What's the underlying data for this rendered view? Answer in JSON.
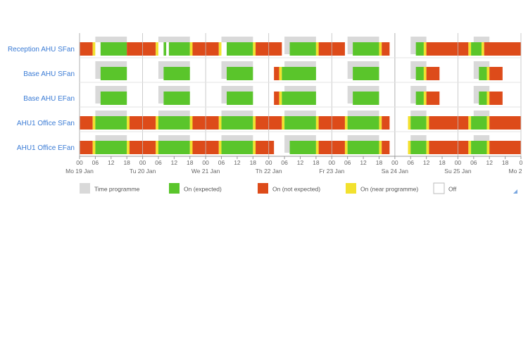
{
  "chart_data": {
    "type": "heatmap",
    "title": "",
    "x_unit": "hours since Mo 19 Jan 00:00",
    "x_range": [
      0,
      168
    ],
    "hour_ticks": [
      "00",
      "06",
      "12",
      "18"
    ],
    "day_labels": [
      "Mo 19 Jan",
      "Tu 20 Jan",
      "We 21 Jan",
      "Th 22 Jan",
      "Fr 23 Jan",
      "Sa 24 Jan",
      "Su 25 Jan",
      "Mo 2"
    ],
    "last_tick_label": "0",
    "legend": [
      {
        "key": "time",
        "label": "Time programme",
        "color": "#d9d9d9"
      },
      {
        "key": "expected",
        "label": "On (expected)",
        "color": "#5ac52b"
      },
      {
        "key": "notexpected",
        "label": "On (not expected)",
        "color": "#dd4b1a"
      },
      {
        "key": "near",
        "label": "On (near programme)",
        "color": "#f2e12e"
      },
      {
        "key": "off",
        "label": "Off",
        "color": "#ffffff"
      }
    ],
    "programme_windows": {
      "weekday": [
        6,
        18
      ],
      "saturday": [
        6,
        12
      ],
      "sunday": [
        6,
        12
      ]
    },
    "series": [
      {
        "name": "Reception AHU SFan",
        "segments": [
          [
            0,
            5,
            "notexpected"
          ],
          [
            5,
            6,
            "near"
          ],
          [
            6,
            8,
            "off"
          ],
          [
            8,
            18,
            "expected"
          ],
          [
            18,
            29,
            "notexpected"
          ],
          [
            29,
            30,
            "near"
          ],
          [
            30,
            32,
            "off"
          ],
          [
            32,
            33,
            "expected"
          ],
          [
            33,
            34,
            "off"
          ],
          [
            34,
            42,
            "expected"
          ],
          [
            42,
            43,
            "near"
          ],
          [
            43,
            53,
            "notexpected"
          ],
          [
            53,
            54,
            "near"
          ],
          [
            54,
            56,
            "off"
          ],
          [
            56,
            66,
            "expected"
          ],
          [
            66,
            67,
            "near"
          ],
          [
            67,
            77,
            "notexpected"
          ],
          [
            80,
            90,
            "expected"
          ],
          [
            90,
            91,
            "near"
          ],
          [
            91,
            101,
            "notexpected"
          ],
          [
            104,
            114,
            "expected"
          ],
          [
            114,
            115,
            "near"
          ],
          [
            115,
            118,
            "notexpected"
          ],
          [
            128,
            131,
            "expected"
          ],
          [
            131,
            132,
            "near"
          ],
          [
            132,
            148,
            "notexpected"
          ],
          [
            148,
            149,
            "near"
          ],
          [
            149,
            153,
            "expected"
          ],
          [
            153,
            154,
            "near"
          ],
          [
            154,
            168,
            "notexpected"
          ]
        ]
      },
      {
        "name": "Base AHU SFan",
        "segments": [
          [
            8,
            18,
            "expected"
          ],
          [
            32,
            42,
            "expected"
          ],
          [
            56,
            66,
            "expected"
          ],
          [
            74,
            76,
            "notexpected"
          ],
          [
            76,
            77,
            "near"
          ],
          [
            77,
            90,
            "expected"
          ],
          [
            104,
            114,
            "expected"
          ],
          [
            128,
            131,
            "expected"
          ],
          [
            131,
            132,
            "near"
          ],
          [
            132,
            137,
            "notexpected"
          ],
          [
            152,
            155,
            "expected"
          ],
          [
            155,
            156,
            "near"
          ],
          [
            156,
            161,
            "notexpected"
          ]
        ]
      },
      {
        "name": "Base AHU EFan",
        "segments": [
          [
            8,
            18,
            "expected"
          ],
          [
            32,
            42,
            "expected"
          ],
          [
            56,
            66,
            "expected"
          ],
          [
            74,
            76,
            "notexpected"
          ],
          [
            76,
            77,
            "near"
          ],
          [
            77,
            90,
            "expected"
          ],
          [
            104,
            114,
            "expected"
          ],
          [
            128,
            131,
            "expected"
          ],
          [
            131,
            132,
            "near"
          ],
          [
            132,
            137,
            "notexpected"
          ],
          [
            152,
            155,
            "expected"
          ],
          [
            155,
            156,
            "near"
          ],
          [
            156,
            161,
            "notexpected"
          ]
        ]
      },
      {
        "name": "AHU1 Office SFan",
        "segments": [
          [
            0,
            5,
            "notexpected"
          ],
          [
            5,
            6,
            "near"
          ],
          [
            6,
            18,
            "expected"
          ],
          [
            18,
            19,
            "near"
          ],
          [
            19,
            29,
            "notexpected"
          ],
          [
            29,
            30,
            "near"
          ],
          [
            30,
            42,
            "expected"
          ],
          [
            42,
            43,
            "near"
          ],
          [
            43,
            53,
            "notexpected"
          ],
          [
            53,
            54,
            "near"
          ],
          [
            54,
            66,
            "expected"
          ],
          [
            66,
            67,
            "near"
          ],
          [
            67,
            77,
            "notexpected"
          ],
          [
            77,
            78,
            "near"
          ],
          [
            78,
            90,
            "expected"
          ],
          [
            90,
            91,
            "near"
          ],
          [
            91,
            101,
            "notexpected"
          ],
          [
            101,
            102,
            "near"
          ],
          [
            102,
            114,
            "expected"
          ],
          [
            114,
            115,
            "near"
          ],
          [
            115,
            118,
            "notexpected"
          ],
          [
            125,
            126,
            "near"
          ],
          [
            126,
            132,
            "expected"
          ],
          [
            132,
            133,
            "near"
          ],
          [
            133,
            148,
            "notexpected"
          ],
          [
            148,
            149,
            "near"
          ],
          [
            149,
            155,
            "expected"
          ],
          [
            155,
            156,
            "near"
          ],
          [
            156,
            168,
            "notexpected"
          ]
        ]
      },
      {
        "name": "AHU1 Office EFan",
        "segments": [
          [
            0,
            5,
            "notexpected"
          ],
          [
            5,
            6,
            "near"
          ],
          [
            6,
            18,
            "expected"
          ],
          [
            18,
            19,
            "near"
          ],
          [
            19,
            29,
            "notexpected"
          ],
          [
            29,
            30,
            "near"
          ],
          [
            30,
            42,
            "expected"
          ],
          [
            42,
            43,
            "near"
          ],
          [
            43,
            53,
            "notexpected"
          ],
          [
            53,
            54,
            "near"
          ],
          [
            54,
            66,
            "expected"
          ],
          [
            66,
            67,
            "near"
          ],
          [
            67,
            74,
            "notexpected"
          ],
          [
            80,
            90,
            "expected"
          ],
          [
            90,
            91,
            "near"
          ],
          [
            91,
            101,
            "notexpected"
          ],
          [
            101,
            102,
            "near"
          ],
          [
            102,
            114,
            "expected"
          ],
          [
            114,
            115,
            "near"
          ],
          [
            115,
            118,
            "notexpected"
          ],
          [
            125,
            126,
            "near"
          ],
          [
            126,
            132,
            "expected"
          ],
          [
            132,
            133,
            "near"
          ],
          [
            133,
            148,
            "notexpected"
          ],
          [
            148,
            149,
            "near"
          ],
          [
            149,
            155,
            "expected"
          ],
          [
            155,
            156,
            "near"
          ],
          [
            156,
            168,
            "notexpected"
          ]
        ]
      }
    ]
  }
}
